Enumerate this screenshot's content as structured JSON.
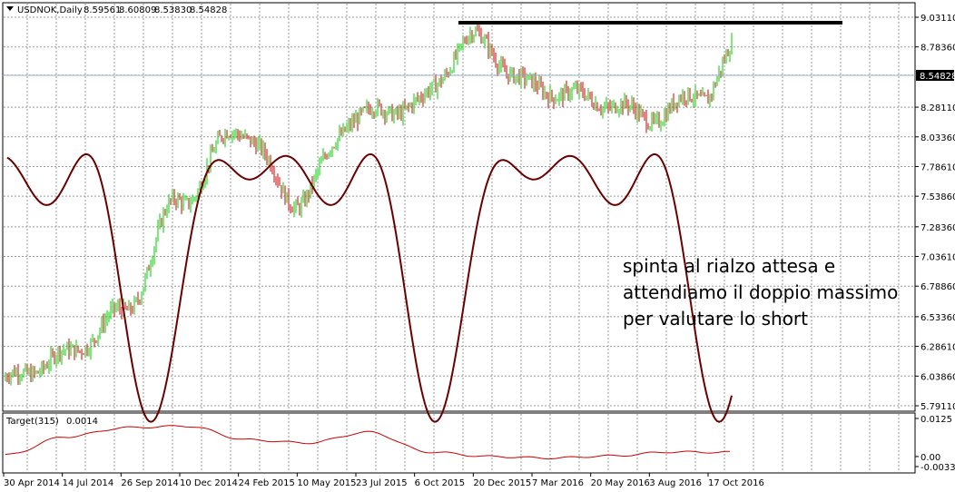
{
  "main_header": {
    "symbol": "USDNOK,Daily",
    "open": "8.59561",
    "high": "8.60809",
    "low": "8.53830",
    "close": "8.54828"
  },
  "indicator_header": {
    "name": "Target(315)",
    "value": "0.0014"
  },
  "price_axis_labels": [
    "9.03110",
    "8.78360",
    "8.54828",
    "8.28110",
    "8.03360",
    "7.78610",
    "7.53860",
    "7.28360",
    "7.03610",
    "6.78860",
    "6.53360",
    "6.28610",
    "6.03860",
    "5.79110"
  ],
  "current_price": "8.54828",
  "indicator_axis_labels": [
    "0.0125",
    "0.00",
    "-0.0033"
  ],
  "time_axis_labels": [
    "30 Apr 2014",
    "14 Jul 2014",
    "26 Sep 2014",
    "10 Dec 2014",
    "24 Feb 2015",
    "10 May 2015",
    "23 Jul 2015",
    "6 Oct 2015",
    "20 Dec 2015",
    "7 Mar 2016",
    "20 May 2016",
    "3 Aug 2016",
    "17 Oct 2016"
  ],
  "annotation": {
    "line1": "spinta al rialzo attesa e",
    "line2": "attendiamo il doppio massimo",
    "line3": "per valutare lo short"
  },
  "colors": {
    "bull_candle": "#00cc00",
    "bear_candle": "#cc0000",
    "cycle_line": "#6b0000",
    "indicator_line": "#cc0000",
    "resistance_line": "#000000",
    "grid": "#9a9a9a"
  },
  "chart_data": {
    "type": "line",
    "title": "USDNOK,Daily",
    "ylim": [
      5.7911,
      9.0311
    ],
    "price_series": {
      "name": "USDNOK",
      "x": [
        "30 Apr 2014",
        "14 Jul 2014",
        "26 Sep 2014",
        "10 Dec 2014",
        "24 Feb 2015",
        "10 May 2015",
        "23 Jul 2015",
        "6 Oct 2015",
        "20 Dec 2015",
        "7 Mar 2016",
        "20 May 2016",
        "3 Aug 2016",
        "17 Oct 2016"
      ],
      "values": [
        6.0,
        6.2,
        6.55,
        7.5,
        8.1,
        7.5,
        8.2,
        8.3,
        8.85,
        8.45,
        8.35,
        8.2,
        8.4
      ]
    },
    "resistance_level": 9.03,
    "cycle_series_description": "sinusoidal projection",
    "indicator": {
      "name": "Target(315)",
      "ylim": [
        -0.0033,
        0.0125
      ],
      "values": [
        0.0005,
        0.0065,
        0.0095,
        0.01,
        0.0055,
        0.0045,
        0.008,
        0.0015,
        0.0,
        -0.0005,
        0.0002,
        0.0015,
        0.0014
      ]
    }
  }
}
